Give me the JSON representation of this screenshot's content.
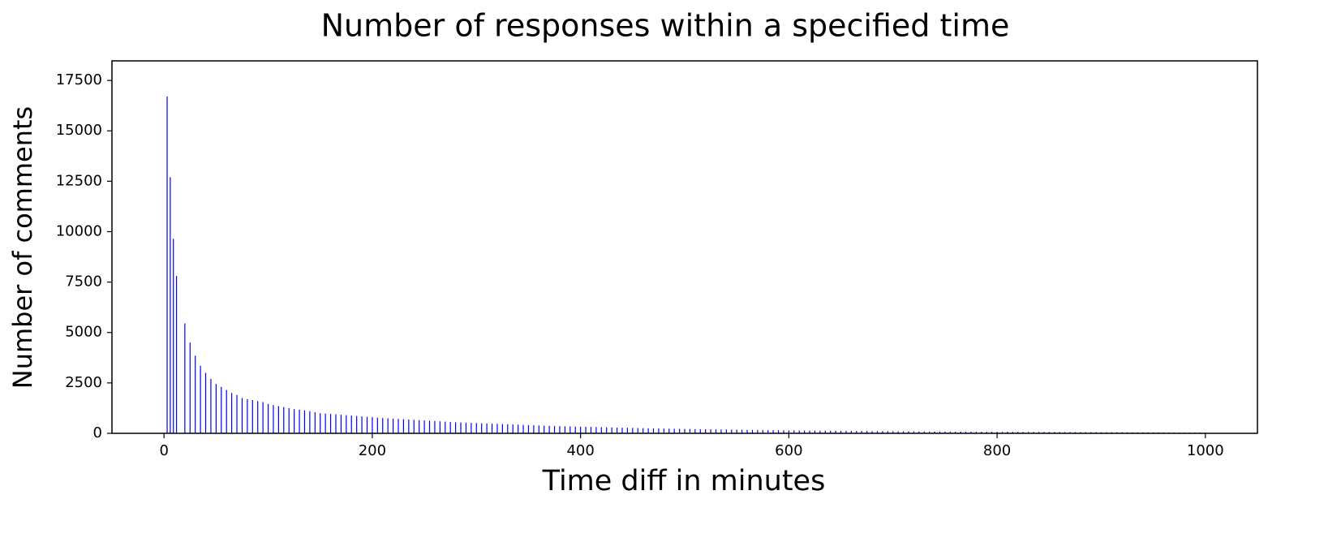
{
  "chart_data": {
    "type": "bar",
    "title": "Number of responses within a specified time",
    "xlabel": "Time diff in minutes",
    "ylabel": "Number of comments",
    "color": "#0000ff",
    "x": [
      3,
      6,
      9,
      12,
      20,
      25,
      30,
      35,
      40,
      45,
      50,
      55,
      60,
      65,
      70,
      75,
      80,
      85,
      90,
      95,
      100,
      105,
      110,
      115,
      120,
      125,
      130,
      135,
      140,
      145,
      150,
      155,
      160,
      165,
      170,
      175,
      180,
      185,
      190,
      195,
      200,
      205,
      210,
      215,
      220,
      225,
      230,
      235,
      240,
      245,
      250,
      255,
      260,
      265,
      270,
      275,
      280,
      285,
      290,
      295,
      300,
      305,
      310,
      315,
      320,
      325,
      330,
      335,
      340,
      345,
      350,
      355,
      360,
      365,
      370,
      375,
      380,
      385,
      390,
      395,
      400,
      405,
      410,
      415,
      420,
      425,
      430,
      435,
      440,
      445,
      450,
      455,
      460,
      465,
      470,
      475,
      480,
      485,
      490,
      495,
      500,
      505,
      510,
      515,
      520,
      525,
      530,
      535,
      540,
      545,
      550,
      555,
      560,
      565,
      570,
      575,
      580,
      585,
      590,
      595,
      600,
      605,
      610,
      615,
      620,
      625,
      630,
      635,
      640,
      645,
      650,
      655,
      660,
      665,
      670,
      675,
      680,
      685,
      690,
      695,
      700,
      705,
      710,
      715,
      720,
      725,
      730,
      735,
      740,
      745,
      750,
      755,
      760,
      765,
      770,
      775,
      780,
      785,
      790,
      795,
      800,
      805,
      810,
      815,
      820,
      825,
      830,
      835,
      840,
      845,
      850,
      855,
      860,
      865,
      870,
      875,
      880,
      885,
      890,
      895,
      900,
      905,
      910,
      915,
      920,
      925,
      930,
      935,
      940,
      945,
      950,
      955,
      960,
      965,
      970,
      975,
      980,
      985,
      990,
      995,
      1000
    ],
    "values": [
      16700,
      12700,
      9650,
      7800,
      5450,
      4500,
      3850,
      3350,
      3000,
      2700,
      2450,
      2300,
      2150,
      2000,
      1900,
      1750,
      1700,
      1650,
      1600,
      1550,
      1450,
      1400,
      1350,
      1300,
      1250,
      1200,
      1170,
      1140,
      1100,
      1050,
      1000,
      980,
      960,
      940,
      920,
      900,
      880,
      860,
      840,
      820,
      800,
      780,
      760,
      745,
      730,
      715,
      700,
      685,
      670,
      655,
      640,
      625,
      610,
      595,
      580,
      565,
      550,
      540,
      530,
      520,
      510,
      500,
      490,
      480,
      470,
      460,
      450,
      440,
      430,
      420,
      410,
      400,
      390,
      380,
      372,
      364,
      356,
      348,
      340,
      335,
      330,
      325,
      318,
      311,
      304,
      297,
      290,
      284,
      278,
      272,
      266,
      260,
      255,
      250,
      245,
      240,
      235,
      230,
      226,
      222,
      218,
      214,
      210,
      206,
      202,
      198,
      194,
      190,
      186,
      182,
      178,
      175,
      172,
      169,
      166,
      163,
      160,
      157,
      154,
      151,
      148,
      145,
      142,
      139,
      136,
      133,
      130,
      128,
      126,
      124,
      122,
      120,
      118,
      116,
      114,
      112,
      110,
      108,
      106,
      104,
      102,
      100,
      98,
      96,
      94,
      92,
      90,
      89,
      88,
      87,
      86,
      85,
      84,
      83,
      82,
      81,
      80,
      79,
      78,
      77,
      76,
      75,
      74,
      73,
      72,
      71,
      70,
      69,
      68,
      67,
      66,
      65,
      64,
      63,
      62,
      61,
      60,
      59,
      58,
      57,
      56,
      55,
      54,
      53,
      52,
      51,
      50,
      49,
      48,
      47,
      46,
      45,
      44,
      43,
      42,
      41,
      40,
      39,
      38,
      37,
      36
    ],
    "xlim": [
      -50,
      1050
    ],
    "ylim": [
      0,
      18470
    ],
    "xticks": [
      0,
      200,
      400,
      600,
      800,
      1000
    ],
    "yticks": [
      0,
      2500,
      5000,
      7500,
      10000,
      12500,
      15000,
      17500
    ]
  }
}
